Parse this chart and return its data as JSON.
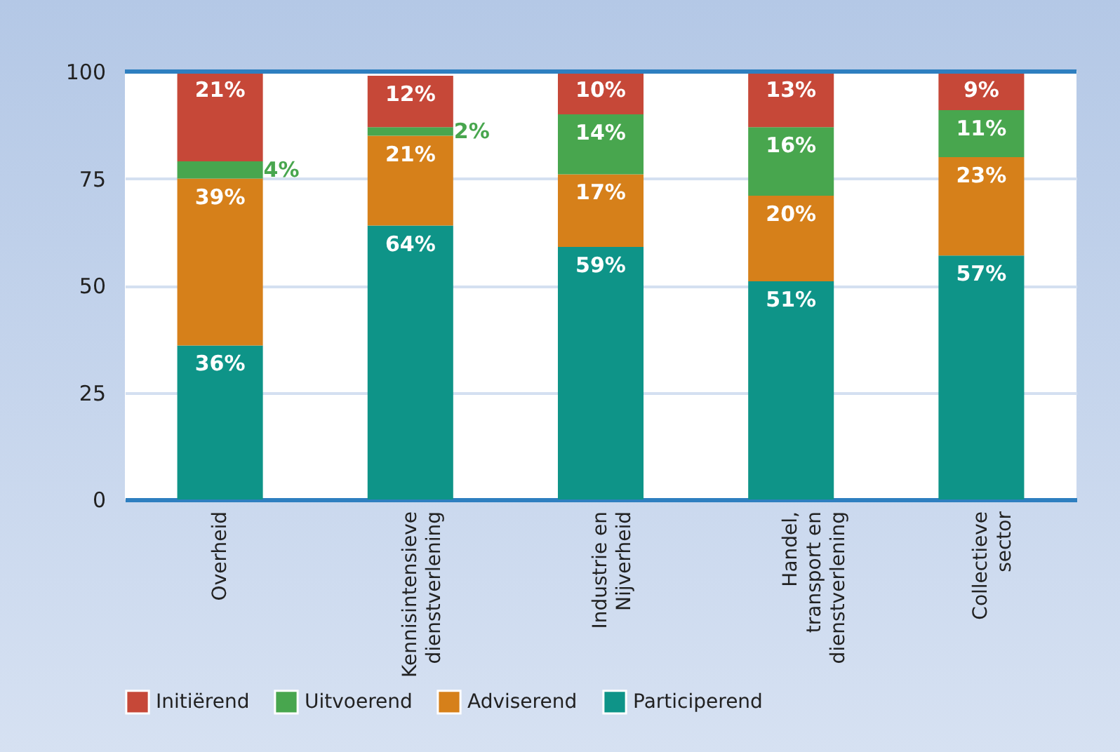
{
  "chart_data": {
    "type": "bar",
    "stacked": true,
    "categories": [
      "Overheid",
      "Kennisintensieve\ndienstverlening",
      "Industrie en\nNijverheid",
      "Handel,\ntransport en\ndienstverlening",
      "Collectieve\nsector"
    ],
    "series": [
      {
        "name": "Participerend",
        "color": "#0e9488",
        "values": [
          36,
          64,
          59,
          51,
          57
        ],
        "value_labels": [
          "36%",
          "64%",
          "59%",
          "51%",
          "57%"
        ]
      },
      {
        "name": "Adviserend",
        "color": "#d6801a",
        "values": [
          39,
          21,
          17,
          20,
          23
        ],
        "value_labels": [
          "39%",
          "21%",
          "17%",
          "20%",
          "23%"
        ]
      },
      {
        "name": "Uitvoerend",
        "color": "#48a64e",
        "values": [
          4,
          2,
          14,
          16,
          11
        ],
        "value_labels": [
          "4%",
          "2%",
          "14%",
          "16%",
          "11%"
        ]
      },
      {
        "name": "Initiërend",
        "color": "#c64838",
        "values": [
          21,
          12,
          10,
          13,
          9
        ],
        "value_labels": [
          "21%",
          "12%",
          "10%",
          "13%",
          "9%"
        ]
      }
    ],
    "ylim": [
      0,
      100
    ],
    "yticks": [
      0,
      25,
      50,
      75,
      100
    ],
    "grid": "y",
    "legend": "bottom"
  }
}
